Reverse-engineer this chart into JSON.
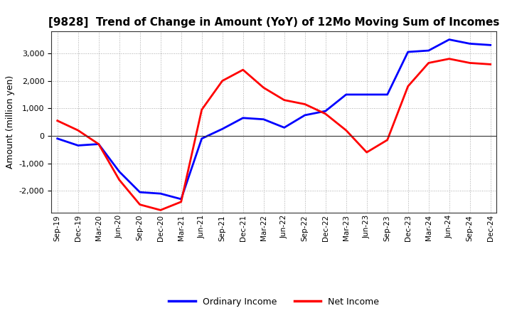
{
  "title": "[9828]  Trend of Change in Amount (YoY) of 12Mo Moving Sum of Incomes",
  "ylabel": "Amount (million yen)",
  "x_labels": [
    "Sep-19",
    "Dec-19",
    "Mar-20",
    "Jun-20",
    "Sep-20",
    "Dec-20",
    "Mar-21",
    "Jun-21",
    "Sep-21",
    "Dec-21",
    "Mar-22",
    "Jun-22",
    "Sep-22",
    "Dec-22",
    "Mar-23",
    "Jun-23",
    "Sep-23",
    "Dec-23",
    "Mar-24",
    "Jun-24",
    "Sep-24",
    "Dec-24"
  ],
  "ordinary_income": [
    -100,
    -350,
    -300,
    -1300,
    -2050,
    -2100,
    -2300,
    -100,
    250,
    650,
    600,
    300,
    750,
    900,
    1500,
    1500,
    1500,
    3050,
    3100,
    3500,
    3350,
    3300
  ],
  "net_income": [
    550,
    200,
    -300,
    -1600,
    -2500,
    -2700,
    -2400,
    950,
    2000,
    2400,
    1750,
    1300,
    1150,
    800,
    200,
    -600,
    -150,
    1800,
    2650,
    2800,
    2650,
    2600
  ],
  "ordinary_color": "#0000ff",
  "net_color": "#ff0000",
  "ylim": [
    -2800,
    3800
  ],
  "yticks": [
    -2000,
    -1000,
    0,
    1000,
    2000,
    3000
  ],
  "background_color": "#ffffff",
  "grid_color": "#aaaaaa",
  "legend_labels": [
    "Ordinary Income",
    "Net Income"
  ],
  "line_width": 2.0
}
